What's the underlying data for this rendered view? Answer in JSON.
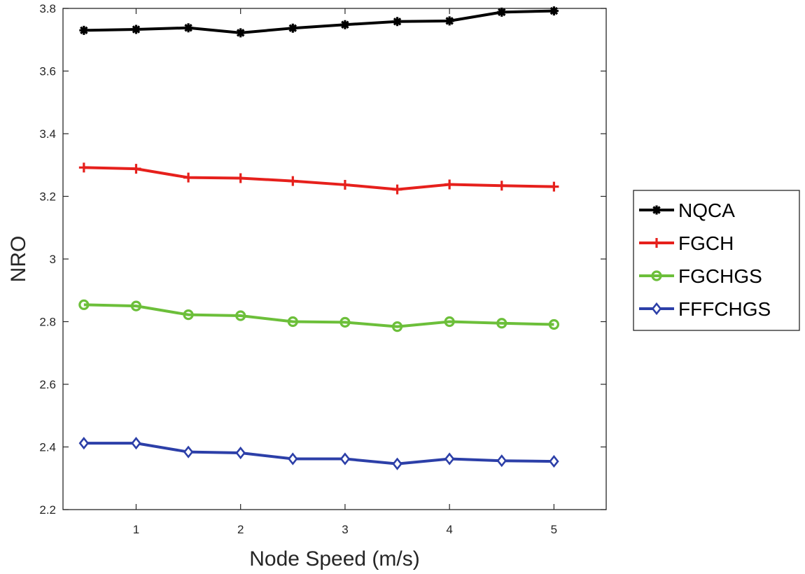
{
  "chart_data": {
    "type": "line",
    "title": "",
    "xlabel": "Node Speed (m/s)",
    "ylabel": "NRO",
    "xlim": [
      0.3,
      5.5
    ],
    "ylim": [
      2.2,
      3.8
    ],
    "x": [
      0.5,
      1,
      1.5,
      2,
      2.5,
      3,
      3.5,
      4,
      4.5,
      5
    ],
    "x_ticks": [
      1,
      2,
      3,
      4,
      5
    ],
    "x_tick_labels": [
      "1",
      "2",
      "3",
      "4",
      "5"
    ],
    "y_ticks": [
      2.2,
      2.4,
      2.6,
      2.8,
      3.0,
      3.2,
      3.4,
      3.6,
      3.8
    ],
    "y_tick_labels": [
      "2.2",
      "2.4",
      "2.6",
      "2.8",
      "3",
      "3.2",
      "3.4",
      "3.6",
      "3.8"
    ],
    "grid": false,
    "legend_position": "outside-right",
    "series": [
      {
        "name": "NQCA",
        "color": "#000000",
        "marker": "asterisk",
        "values": [
          3.73,
          3.733,
          3.738,
          3.722,
          3.737,
          3.748,
          3.758,
          3.76,
          3.788,
          3.792
        ]
      },
      {
        "name": "FGCH",
        "color": "#e6201c",
        "marker": "plus",
        "values": [
          3.292,
          3.288,
          3.26,
          3.258,
          3.249,
          3.237,
          3.222,
          3.238,
          3.234,
          3.231
        ]
      },
      {
        "name": "FGCHGS",
        "color": "#6cbf3a",
        "marker": "circle",
        "values": [
          2.854,
          2.85,
          2.822,
          2.819,
          2.8,
          2.798,
          2.784,
          2.8,
          2.795,
          2.791
        ]
      },
      {
        "name": "FFFCHGS",
        "color": "#2c3fa8",
        "marker": "diamond",
        "values": [
          2.412,
          2.412,
          2.384,
          2.381,
          2.362,
          2.362,
          2.346,
          2.362,
          2.356,
          2.354
        ]
      }
    ]
  }
}
